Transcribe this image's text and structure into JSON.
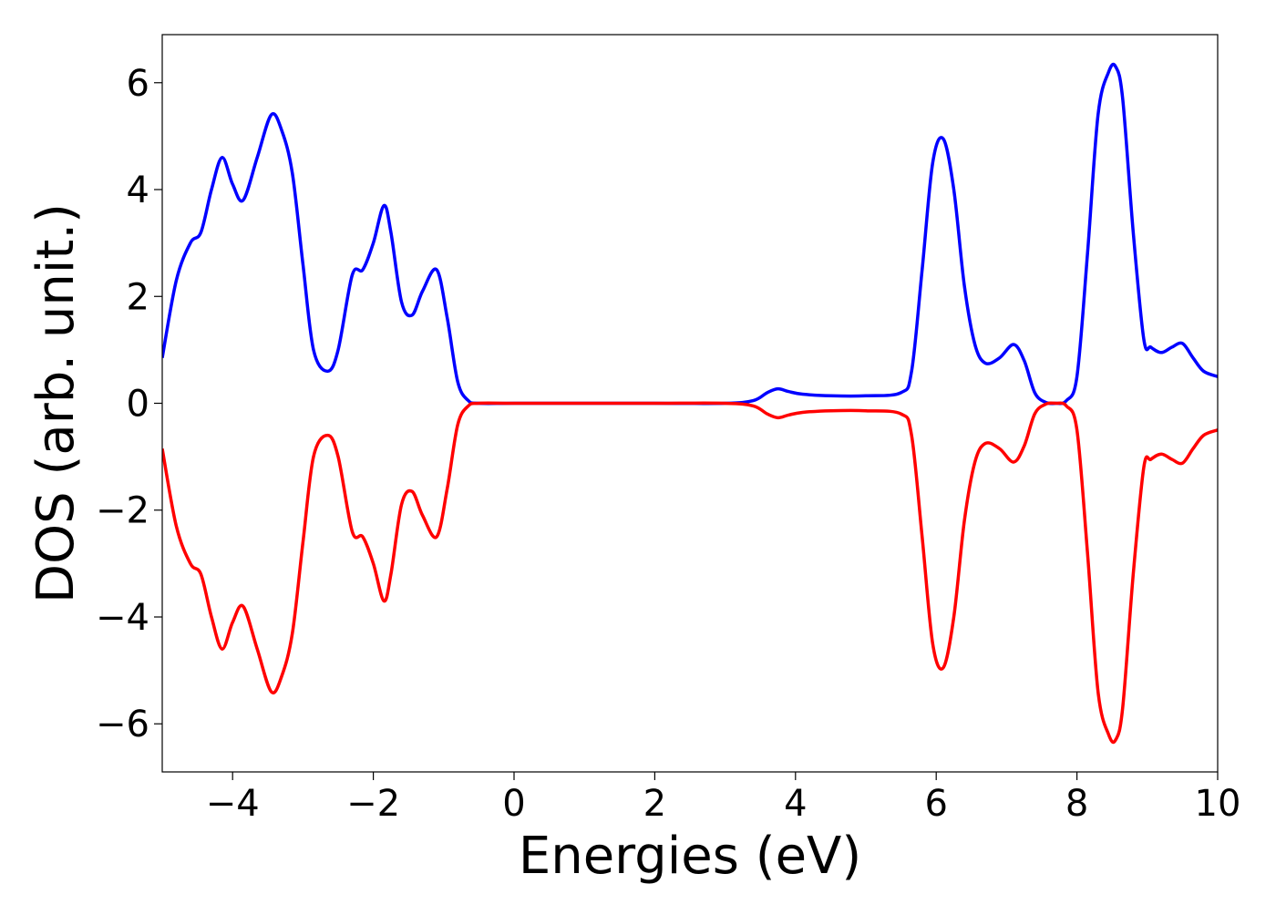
{
  "chart_data": {
    "type": "line",
    "title": "",
    "xlabel": "Energies (eV)",
    "ylabel": "DOS (arb. unit.)",
    "xlim": [
      -5,
      10
    ],
    "ylim": [
      -6.9,
      6.9
    ],
    "xticks": [
      -4,
      -2,
      0,
      2,
      4,
      6,
      8,
      10
    ],
    "xtick_labels": [
      "−4",
      "−2",
      "0",
      "2",
      "4",
      "6",
      "8",
      "10"
    ],
    "yticks": [
      6,
      4,
      2,
      0,
      -2,
      -4,
      -6
    ],
    "ytick_labels": [
      "6",
      "4",
      "2",
      "0",
      "−2",
      "−4",
      "−6"
    ],
    "grid": false,
    "legend": "none",
    "colors": {
      "spin_up": "#0000ff",
      "spin_down": "#ff0000",
      "axes": "#000000"
    },
    "series": [
      {
        "color": "#0000ff",
        "x": [
          -5.0,
          -4.8,
          -4.6,
          -4.45,
          -4.3,
          -4.15,
          -4.0,
          -3.85,
          -3.65,
          -3.45,
          -3.3,
          -3.15,
          -3.0,
          -2.85,
          -2.65,
          -2.5,
          -2.3,
          -2.15,
          -2.0,
          -1.85,
          -1.75,
          -1.6,
          -1.45,
          -1.3,
          -1.1,
          -0.95,
          -0.8,
          -0.65,
          -0.5,
          0.0,
          1.0,
          2.0,
          3.0,
          3.4,
          3.6,
          3.75,
          3.9,
          4.1,
          4.5,
          5.0,
          5.5,
          5.65,
          5.8,
          5.95,
          6.1,
          6.25,
          6.4,
          6.55,
          6.7,
          6.9,
          7.1,
          7.25,
          7.4,
          7.55,
          7.7,
          7.85,
          8.0,
          8.15,
          8.3,
          8.45,
          8.55,
          8.65,
          8.8,
          8.95,
          9.05,
          9.2,
          9.35,
          9.5,
          9.65,
          9.8,
          10.0
        ],
        "y": [
          0.85,
          2.3,
          3.0,
          3.2,
          4.0,
          4.6,
          4.1,
          3.8,
          4.6,
          5.4,
          5.1,
          4.3,
          2.6,
          1.0,
          0.6,
          1.0,
          2.4,
          2.5,
          3.0,
          3.7,
          3.2,
          1.9,
          1.65,
          2.1,
          2.5,
          1.6,
          0.4,
          0.05,
          0.0,
          0.0,
          0.0,
          0.0,
          0.0,
          0.05,
          0.2,
          0.27,
          0.22,
          0.17,
          0.14,
          0.14,
          0.2,
          0.6,
          2.5,
          4.5,
          4.95,
          4.0,
          2.2,
          1.1,
          0.75,
          0.85,
          1.1,
          0.8,
          0.2,
          0.02,
          0.0,
          0.05,
          0.5,
          2.8,
          5.4,
          6.2,
          6.3,
          5.7,
          3.2,
          1.2,
          1.05,
          0.95,
          1.05,
          1.12,
          0.85,
          0.6,
          0.5
        ]
      },
      {
        "color": "#ff0000",
        "x": [
          -5.0,
          -4.8,
          -4.6,
          -4.45,
          -4.3,
          -4.15,
          -4.0,
          -3.85,
          -3.65,
          -3.45,
          -3.3,
          -3.15,
          -3.0,
          -2.85,
          -2.65,
          -2.5,
          -2.3,
          -2.15,
          -2.0,
          -1.85,
          -1.75,
          -1.6,
          -1.45,
          -1.3,
          -1.1,
          -0.95,
          -0.8,
          -0.65,
          -0.5,
          0.0,
          1.0,
          2.0,
          3.0,
          3.4,
          3.6,
          3.75,
          3.9,
          4.1,
          4.5,
          5.0,
          5.5,
          5.65,
          5.8,
          5.95,
          6.1,
          6.25,
          6.4,
          6.55,
          6.7,
          6.9,
          7.1,
          7.25,
          7.4,
          7.55,
          7.7,
          7.85,
          8.0,
          8.15,
          8.3,
          8.45,
          8.55,
          8.65,
          8.8,
          8.95,
          9.05,
          9.2,
          9.35,
          9.5,
          9.65,
          9.8,
          10.0
        ],
        "y": [
          -0.85,
          -2.3,
          -3.0,
          -3.2,
          -4.0,
          -4.6,
          -4.1,
          -3.8,
          -4.6,
          -5.4,
          -5.1,
          -4.3,
          -2.6,
          -1.0,
          -0.6,
          -1.0,
          -2.4,
          -2.5,
          -3.0,
          -3.7,
          -3.2,
          -1.9,
          -1.65,
          -2.1,
          -2.5,
          -1.6,
          -0.4,
          -0.05,
          0.0,
          0.0,
          0.0,
          0.0,
          0.0,
          -0.05,
          -0.2,
          -0.27,
          -0.22,
          -0.17,
          -0.14,
          -0.14,
          -0.2,
          -0.6,
          -2.5,
          -4.5,
          -4.95,
          -4.0,
          -2.2,
          -1.1,
          -0.75,
          -0.85,
          -1.1,
          -0.8,
          -0.2,
          -0.02,
          0.0,
          -0.05,
          -0.5,
          -2.8,
          -5.4,
          -6.2,
          -6.3,
          -5.7,
          -3.2,
          -1.2,
          -1.05,
          -0.95,
          -1.05,
          -1.12,
          -0.85,
          -0.6,
          -0.5
        ]
      }
    ]
  }
}
